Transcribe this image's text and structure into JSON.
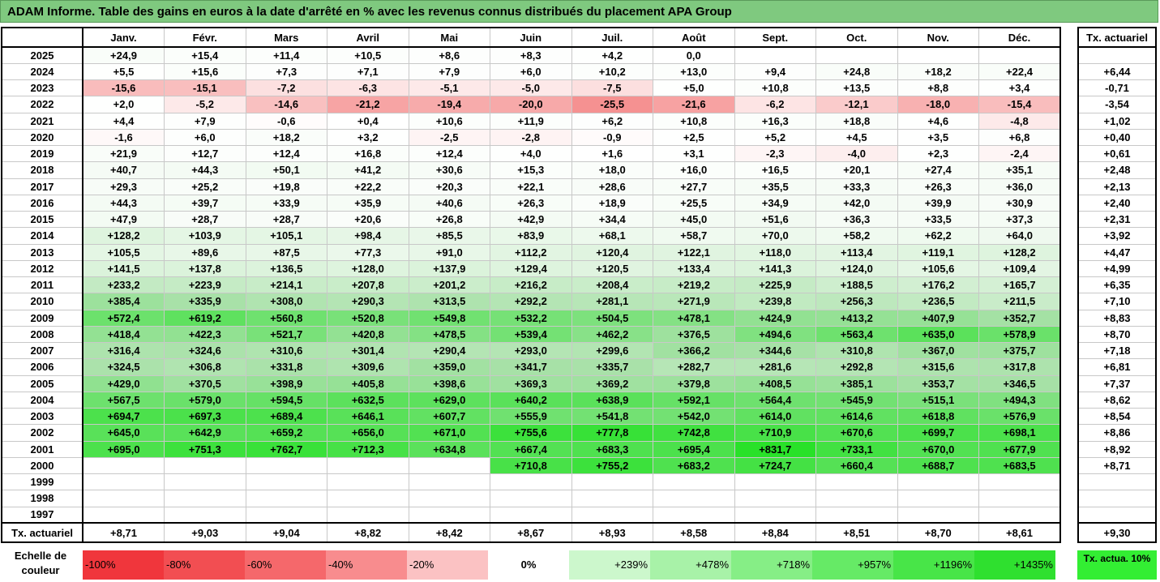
{
  "title": "ADAM Informe. Table des gains en euros à la date d'arrêté en % avec les revenus connus distribués du placement APA Group",
  "chart_data": {
    "type": "table",
    "months": [
      "Janv.",
      "Févr.",
      "Mars",
      "Avril",
      "Mai",
      "Juin",
      "Juil.",
      "Août",
      "Sept.",
      "Oct.",
      "Nov.",
      "Déc."
    ],
    "tx_header": "Tx. actuariel",
    "rows": [
      {
        "year": "2025",
        "values": [
          "+24,9",
          "+15,4",
          "+11,4",
          "+10,5",
          "+8,6",
          "+8,3",
          "+4,2",
          "0,0",
          "",
          "",
          "",
          ""
        ],
        "tx": ""
      },
      {
        "year": "2024",
        "values": [
          "+5,5",
          "+15,6",
          "+7,3",
          "+7,1",
          "+7,9",
          "+6,0",
          "+10,2",
          "+13,0",
          "+9,4",
          "+24,8",
          "+18,2",
          "+22,4"
        ],
        "tx": "+6,44"
      },
      {
        "year": "2023",
        "values": [
          "-15,6",
          "-15,1",
          "-7,2",
          "-6,3",
          "-5,1",
          "-5,0",
          "-7,5",
          "+5,0",
          "+10,8",
          "+13,5",
          "+8,8",
          "+3,4"
        ],
        "tx": "-0,71"
      },
      {
        "year": "2022",
        "values": [
          "+2,0",
          "-5,2",
          "-14,6",
          "-21,2",
          "-19,4",
          "-20,0",
          "-25,5",
          "-21,6",
          "-6,2",
          "-12,1",
          "-18,0",
          "-15,4"
        ],
        "tx": "-3,54"
      },
      {
        "year": "2021",
        "values": [
          "+4,4",
          "+7,9",
          "-0,6",
          "+0,4",
          "+10,6",
          "+11,9",
          "+6,2",
          "+10,8",
          "+16,3",
          "+18,8",
          "+4,6",
          "-4,8"
        ],
        "tx": "+1,02"
      },
      {
        "year": "2020",
        "values": [
          "-1,6",
          "+6,0",
          "+18,2",
          "+3,2",
          "-2,5",
          "-2,8",
          "-0,9",
          "+2,5",
          "+5,2",
          "+4,5",
          "+3,5",
          "+6,8"
        ],
        "tx": "+0,40"
      },
      {
        "year": "2019",
        "values": [
          "+21,9",
          "+12,7",
          "+12,4",
          "+16,8",
          "+12,4",
          "+4,0",
          "+1,6",
          "+3,1",
          "-2,3",
          "-4,0",
          "+2,3",
          "-2,4"
        ],
        "tx": "+0,61"
      },
      {
        "year": "2018",
        "values": [
          "+40,7",
          "+44,3",
          "+50,1",
          "+41,2",
          "+30,6",
          "+15,3",
          "+18,0",
          "+16,0",
          "+16,5",
          "+20,1",
          "+27,4",
          "+35,1"
        ],
        "tx": "+2,48"
      },
      {
        "year": "2017",
        "values": [
          "+29,3",
          "+25,2",
          "+19,8",
          "+22,2",
          "+20,3",
          "+22,1",
          "+28,6",
          "+27,7",
          "+35,5",
          "+33,3",
          "+26,3",
          "+36,0"
        ],
        "tx": "+2,13"
      },
      {
        "year": "2016",
        "values": [
          "+44,3",
          "+39,7",
          "+33,9",
          "+35,9",
          "+40,6",
          "+26,3",
          "+18,9",
          "+25,5",
          "+34,9",
          "+42,0",
          "+39,9",
          "+30,9"
        ],
        "tx": "+2,40"
      },
      {
        "year": "2015",
        "values": [
          "+47,9",
          "+28,7",
          "+28,7",
          "+20,6",
          "+26,8",
          "+42,9",
          "+34,4",
          "+45,0",
          "+51,6",
          "+36,3",
          "+33,5",
          "+37,3"
        ],
        "tx": "+2,31"
      },
      {
        "year": "2014",
        "values": [
          "+128,2",
          "+103,9",
          "+105,1",
          "+98,4",
          "+85,5",
          "+83,9",
          "+68,1",
          "+58,7",
          "+70,0",
          "+58,2",
          "+62,2",
          "+64,0"
        ],
        "tx": "+3,92"
      },
      {
        "year": "2013",
        "values": [
          "+105,5",
          "+89,6",
          "+87,5",
          "+77,3",
          "+91,0",
          "+112,2",
          "+120,4",
          "+122,1",
          "+118,0",
          "+113,4",
          "+119,1",
          "+128,2"
        ],
        "tx": "+4,47"
      },
      {
        "year": "2012",
        "values": [
          "+141,5",
          "+137,8",
          "+136,5",
          "+128,0",
          "+137,9",
          "+129,4",
          "+120,5",
          "+133,4",
          "+141,3",
          "+124,0",
          "+105,6",
          "+109,4"
        ],
        "tx": "+4,99"
      },
      {
        "year": "2011",
        "values": [
          "+233,2",
          "+223,9",
          "+214,1",
          "+207,8",
          "+201,2",
          "+216,2",
          "+208,4",
          "+219,2",
          "+225,9",
          "+188,5",
          "+176,2",
          "+165,7"
        ],
        "tx": "+6,35"
      },
      {
        "year": "2010",
        "values": [
          "+385,4",
          "+335,9",
          "+308,0",
          "+290,3",
          "+313,5",
          "+292,2",
          "+281,1",
          "+271,9",
          "+239,8",
          "+256,3",
          "+236,5",
          "+211,5"
        ],
        "tx": "+7,10"
      },
      {
        "year": "2009",
        "values": [
          "+572,4",
          "+619,2",
          "+560,8",
          "+520,8",
          "+549,8",
          "+532,2",
          "+504,5",
          "+478,1",
          "+424,9",
          "+413,2",
          "+407,9",
          "+352,7"
        ],
        "tx": "+8,83"
      },
      {
        "year": "2008",
        "values": [
          "+418,4",
          "+422,3",
          "+521,7",
          "+420,8",
          "+478,5",
          "+539,4",
          "+462,2",
          "+376,5",
          "+494,6",
          "+563,4",
          "+635,0",
          "+578,9"
        ],
        "tx": "+8,70"
      },
      {
        "year": "2007",
        "values": [
          "+316,4",
          "+324,6",
          "+310,6",
          "+301,4",
          "+290,4",
          "+293,0",
          "+299,6",
          "+366,2",
          "+344,6",
          "+310,8",
          "+367,0",
          "+375,7"
        ],
        "tx": "+7,18"
      },
      {
        "year": "2006",
        "values": [
          "+324,5",
          "+306,8",
          "+331,8",
          "+309,6",
          "+359,0",
          "+341,7",
          "+335,7",
          "+282,7",
          "+281,6",
          "+292,8",
          "+315,6",
          "+317,8"
        ],
        "tx": "+6,81"
      },
      {
        "year": "2005",
        "values": [
          "+429,0",
          "+370,5",
          "+398,9",
          "+405,8",
          "+398,6",
          "+369,3",
          "+369,2",
          "+379,8",
          "+408,5",
          "+385,1",
          "+353,7",
          "+346,5"
        ],
        "tx": "+7,37"
      },
      {
        "year": "2004",
        "values": [
          "+567,5",
          "+579,0",
          "+594,5",
          "+632,5",
          "+629,0",
          "+640,2",
          "+638,9",
          "+592,1",
          "+564,4",
          "+545,9",
          "+515,1",
          "+494,3"
        ],
        "tx": "+8,62"
      },
      {
        "year": "2003",
        "values": [
          "+694,7",
          "+697,3",
          "+689,4",
          "+646,1",
          "+607,7",
          "+555,9",
          "+541,8",
          "+542,0",
          "+614,0",
          "+614,6",
          "+618,8",
          "+576,9"
        ],
        "tx": "+8,54"
      },
      {
        "year": "2002",
        "values": [
          "+645,0",
          "+642,9",
          "+659,2",
          "+656,0",
          "+671,0",
          "+755,6",
          "+777,8",
          "+742,8",
          "+710,9",
          "+670,6",
          "+699,7",
          "+698,1"
        ],
        "tx": "+8,86"
      },
      {
        "year": "2001",
        "values": [
          "+695,0",
          "+751,3",
          "+762,7",
          "+712,3",
          "+634,8",
          "+667,4",
          "+683,3",
          "+695,4",
          "+831,7",
          "+733,1",
          "+670,0",
          "+677,9"
        ],
        "tx": "+8,92"
      },
      {
        "year": "2000",
        "values": [
          "",
          "",
          "",
          "",
          "",
          "+710,8",
          "+755,2",
          "+683,2",
          "+724,7",
          "+660,4",
          "+688,7",
          "+683,5"
        ],
        "tx": "+8,71"
      },
      {
        "year": "1999",
        "values": [
          "",
          "",
          "",
          "",
          "",
          "",
          "",
          "",
          "",
          "",
          "",
          ""
        ],
        "tx": ""
      },
      {
        "year": "1998",
        "values": [
          "",
          "",
          "",
          "",
          "",
          "",
          "",
          "",
          "",
          "",
          "",
          ""
        ],
        "tx": ""
      },
      {
        "year": "1997",
        "values": [
          "",
          "",
          "",
          "",
          "",
          "",
          "",
          "",
          "",
          "",
          "",
          ""
        ],
        "tx": ""
      }
    ],
    "footer": {
      "label": "Tx. actuariel",
      "values": [
        "+8,71",
        "+9,03",
        "+9,04",
        "+8,82",
        "+8,42",
        "+8,67",
        "+8,93",
        "+8,58",
        "+8,84",
        "+8,51",
        "+8,70",
        "+8,61"
      ],
      "tx": "+9,30"
    },
    "scale": {
      "label": "Echelle de couleur",
      "entries": [
        {
          "text": "-100%",
          "color": "#f0363c",
          "align": "left"
        },
        {
          "text": "-80%",
          "color": "#f24e52",
          "align": "left"
        },
        {
          "text": "-60%",
          "color": "#f5686b",
          "align": "left"
        },
        {
          "text": "-40%",
          "color": "#f88c8e",
          "align": "left"
        },
        {
          "text": "-20%",
          "color": "#fbc2c3",
          "align": "left"
        },
        {
          "text": "0%",
          "color": "#ffffff",
          "align": "center"
        },
        {
          "text": "+239%",
          "color": "#ccf7cc",
          "align": "right"
        },
        {
          "text": "+478%",
          "color": "#a8f2a8",
          "align": "right"
        },
        {
          "text": "+718%",
          "color": "#86ee86",
          "align": "right"
        },
        {
          "text": "+957%",
          "color": "#66ea66",
          "align": "right"
        },
        {
          "text": "+1196%",
          "color": "#48e548",
          "align": "right"
        },
        {
          "text": "+1435%",
          "color": "#2fe02f",
          "align": "right"
        }
      ],
      "tx_label": "Tx. actua. 10%",
      "tx_color": "#33ee33"
    }
  }
}
